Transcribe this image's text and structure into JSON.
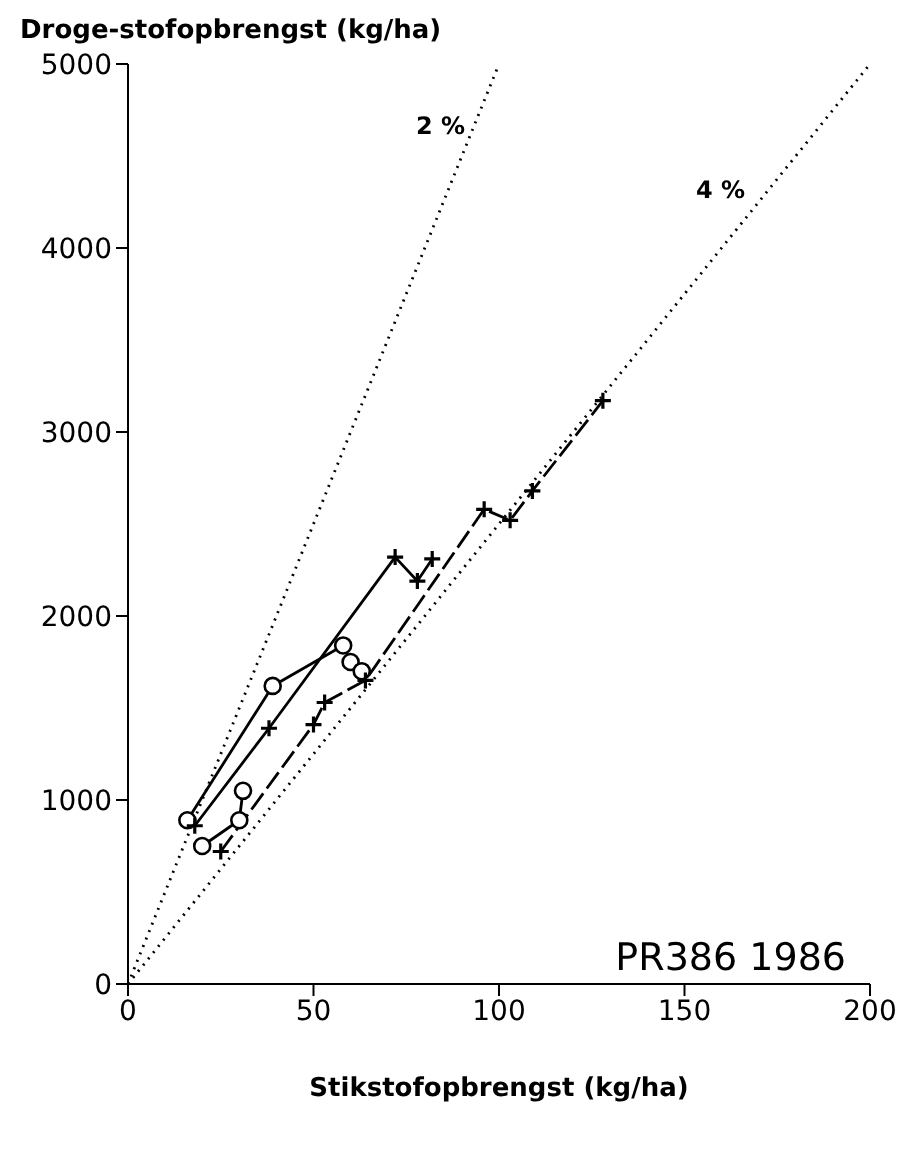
{
  "chart_data": {
    "type": "line",
    "xlabel": "Stikstofopbrengst (kg/ha)",
    "ylabel": "Droge-stofopbrengst (kg/ha)",
    "xlim": [
      0,
      200
    ],
    "xticks": [
      0,
      50,
      100,
      150,
      200
    ],
    "ylim": [
      0,
      5000
    ],
    "yticks": [
      0,
      1000,
      2000,
      3000,
      4000,
      5000
    ],
    "series": [
      {
        "color": "#000000",
        "x": [
          0,
          100
        ],
        "values": [
          0,
          5000
        ],
        "marker": "none",
        "line_style": "dotted"
      },
      {
        "color": "#000000",
        "x": [
          0,
          200
        ],
        "values": [
          0,
          5000
        ],
        "marker": "none",
        "line_style": "dotted"
      },
      {
        "color": "#000000",
        "x": [
          16,
          39,
          58,
          60,
          63
        ],
        "values": [
          890,
          1620,
          1840,
          1750,
          1700
        ],
        "marker": "circle",
        "line_style": "solid"
      },
      {
        "color": "#000000",
        "x": [
          20,
          30,
          31
        ],
        "values": [
          750,
          890,
          1050
        ],
        "marker": "circle",
        "line_style": "solid"
      },
      {
        "color": "#000000",
        "x": [
          18,
          38,
          72,
          78,
          82
        ],
        "values": [
          860,
          1390,
          2320,
          2190,
          2310
        ],
        "marker": "cross",
        "line_style": "solid"
      },
      {
        "color": "#000000",
        "x": [
          25,
          50,
          53,
          64,
          96,
          103,
          109,
          128
        ],
        "values": [
          720,
          1410,
          1530,
          1650,
          2580,
          2520,
          2680,
          3170
        ],
        "marker": "cross",
        "line_style": "dashed"
      }
    ],
    "annotations": [
      "2 %",
      "4 %",
      "PR386 1986"
    ]
  }
}
